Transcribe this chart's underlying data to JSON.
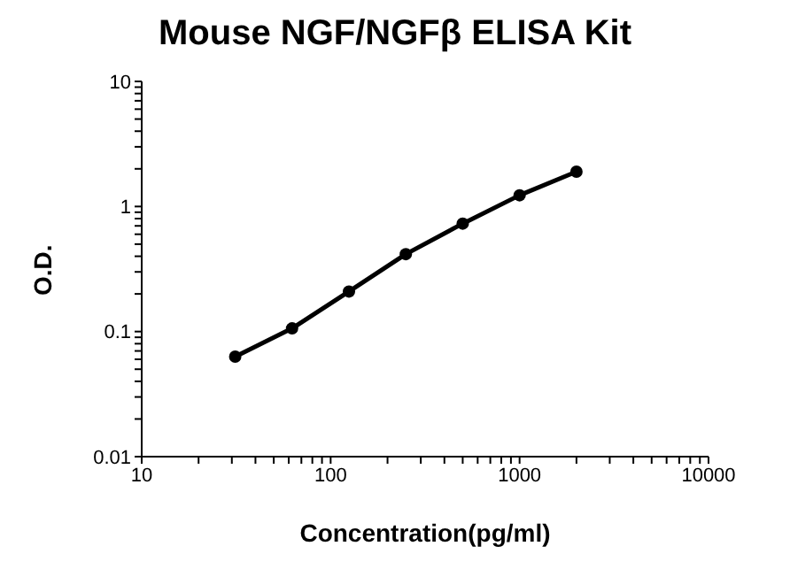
{
  "chart_data": {
    "type": "line",
    "title": "Mouse NGF/NGFβ ELISA Kit",
    "xlabel": "Concentration(pg/ml)",
    "ylabel": "O.D.",
    "x": [
      31.25,
      62.5,
      125,
      250,
      500,
      1000,
      2000
    ],
    "series": [
      {
        "color": "#000000",
        "values": [
          0.063,
          0.106,
          0.209,
          0.416,
          0.73,
          1.23,
          1.9
        ]
      }
    ],
    "log": "xy",
    "xlim": [
      10,
      10000
    ],
    "ylim": [
      0.01,
      10
    ],
    "xticks": [
      10,
      {
        "value": 20,
        "label": null
      },
      {
        "value": 30,
        "label": null
      },
      {
        "value": 40,
        "label": null
      },
      {
        "value": 50,
        "label": null
      },
      {
        "value": 60,
        "label": null
      },
      {
        "value": 70,
        "label": null
      },
      {
        "value": 80,
        "label": null
      },
      {
        "value": 90,
        "label": null
      },
      100,
      {
        "value": 200,
        "label": null
      },
      {
        "value": 300,
        "label": null
      },
      {
        "value": 400,
        "label": null
      },
      {
        "value": 500,
        "label": null
      },
      {
        "value": 600,
        "label": null
      },
      {
        "value": 700,
        "label": null
      },
      {
        "value": 800,
        "label": null
      },
      {
        "value": 900,
        "label": null
      },
      1000,
      {
        "value": 2000,
        "label": null
      },
      {
        "value": 3000,
        "label": null
      },
      {
        "value": 4000,
        "label": null
      },
      {
        "value": 5000,
        "label": null
      },
      {
        "value": 6000,
        "label": null
      },
      {
        "value": 7000,
        "label": null
      },
      {
        "value": 8000,
        "label": null
      },
      {
        "value": 9000,
        "label": null
      },
      10000
    ],
    "yticks": [
      0.01,
      {
        "value": 0.02,
        "label": null
      },
      {
        "value": 0.03,
        "label": null
      },
      {
        "value": 0.04,
        "label": null
      },
      {
        "value": 0.05,
        "label": null
      },
      {
        "value": 0.06,
        "label": null
      },
      {
        "value": 0.07,
        "label": null
      },
      {
        "value": 0.08,
        "label": null
      },
      {
        "value": 0.09,
        "label": null
      },
      0.1,
      {
        "value": 0.2,
        "label": null
      },
      {
        "value": 0.3,
        "label": null
      },
      {
        "value": 0.4,
        "label": null
      },
      {
        "value": 0.5,
        "label": null
      },
      {
        "value": 0.6,
        "label": null
      },
      {
        "value": 0.7,
        "label": null
      },
      {
        "value": 0.8,
        "label": null
      },
      {
        "value": 0.9,
        "label": null
      },
      1,
      {
        "value": 2,
        "label": null
      },
      {
        "value": 3,
        "label": null
      },
      {
        "value": 4,
        "label": null
      },
      {
        "value": 5,
        "label": null
      },
      {
        "value": 6,
        "label": null
      },
      {
        "value": 7,
        "label": null
      },
      {
        "value": 8,
        "label": null
      },
      {
        "value": 9,
        "label": null
      },
      10
    ],
    "marker": "circle",
    "line_style": "solid",
    "grid": false,
    "legend": false
  }
}
